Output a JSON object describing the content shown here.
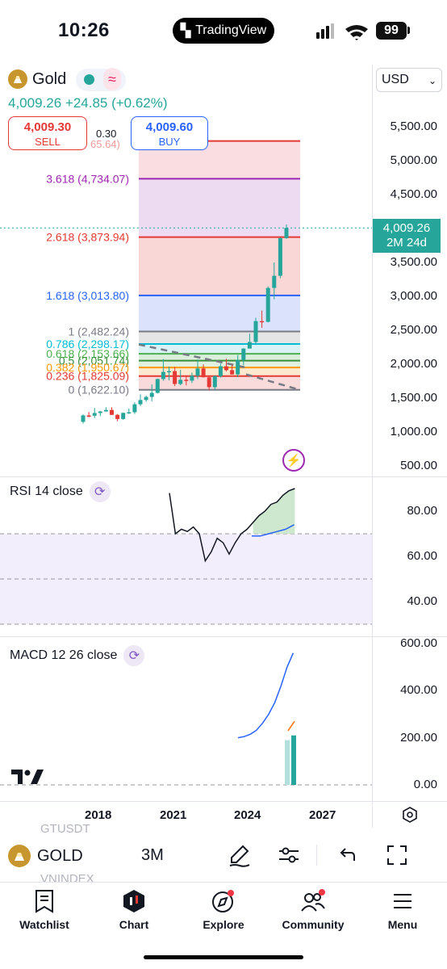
{
  "status_bar": {
    "time": "10:26",
    "island_label": "TradingView",
    "battery": "99"
  },
  "header": {
    "symbol": "Gold",
    "last_line": "4,009.26 +24.85 (+0.62%)",
    "sell": {
      "price": "4,009.30",
      "label": "SELL"
    },
    "buy": {
      "price": "4,009.60",
      "label": "BUY"
    },
    "spread": "0.30",
    "currency": "USD",
    "colors": {
      "up": "#26a69a",
      "down": "#e53935",
      "buy": "#2962ff"
    }
  },
  "price_axis": {
    "labels": [
      "5,500.00",
      "5,000.00",
      "4,500.00",
      "4,000.00",
      "3,500.00",
      "3,000.00",
      "2,500.00",
      "2,000.00",
      "1,500.00",
      "1,000.00",
      "500.00"
    ],
    "tag_price": "4,009.26",
    "tag_countdown": "2M 24d"
  },
  "fib_levels": [
    {
      "label": "3.618 (4,734.07)",
      "value": 4734.07,
      "color": "#9c27b0"
    },
    {
      "label": "2.618 (3,873.94)",
      "value": 3873.94,
      "color": "#e53935"
    },
    {
      "label": "1.618 (3,013.80)",
      "value": 3013.8,
      "color": "#2962ff"
    },
    {
      "label": "1 (2,482.24)",
      "value": 2482.24,
      "color": "#787b86"
    },
    {
      "label": "0.786 (2,298.17)",
      "value": 2298.17,
      "color": "#00bcd4"
    },
    {
      "label": "0.618 (2,153.66)",
      "value": 2153.66,
      "color": "#4caf50"
    },
    {
      "label": "0.5 (2,051.74)",
      "value": 2051.74,
      "color": "#388e3c"
    },
    {
      "label": "0.382 (1,950.67)",
      "value": 1950.67,
      "color": "#ff9800"
    },
    {
      "label": "0.236 (1,825.09)",
      "value": 1825.09,
      "color": "#e53935"
    },
    {
      "label": "0 (1,622.10)",
      "value": 1622.1,
      "color": "#787b86"
    }
  ],
  "fib_partial_label": "65.64)",
  "rsi": {
    "title": "RSI 14 close",
    "labels": [
      "80.00",
      "60.00",
      "40.00"
    ]
  },
  "macd": {
    "title": "MACD 12 26 close",
    "labels": [
      "600.00",
      "400.00",
      "200.00",
      "0.00"
    ]
  },
  "time_axis": [
    "2018",
    "2021",
    "2024",
    "2027"
  ],
  "toolbar": {
    "symbol": "GOLD",
    "interval": "3M",
    "ghost_above": "GTUSDT",
    "ghost_below": "VNINDEX"
  },
  "nav": [
    {
      "label": "Watchlist",
      "icon": "watchlist-icon"
    },
    {
      "label": "Chart",
      "icon": "chart-icon"
    },
    {
      "label": "Explore",
      "icon": "compass-icon"
    },
    {
      "label": "Community",
      "icon": "community-icon"
    },
    {
      "label": "Menu",
      "icon": "menu-icon"
    }
  ],
  "chart_data": {
    "type": "candlestick",
    "interval": "3M",
    "x_ticks": [
      "2018",
      "2021",
      "2024",
      "2027"
    ],
    "y_ticks": [
      500,
      1000,
      1500,
      2000,
      2500,
      3000,
      3500,
      4000,
      4500,
      5000,
      5500
    ],
    "ylim": [
      450,
      5750
    ],
    "last_price": 4009.26,
    "candles": [
      {
        "t": "2017-Q1",
        "o": 1150,
        "h": 1260,
        "l": 1125,
        "c": 1245
      },
      {
        "t": "2017-Q2",
        "o": 1245,
        "h": 1295,
        "l": 1215,
        "c": 1240
      },
      {
        "t": "2017-Q3",
        "o": 1240,
        "h": 1355,
        "l": 1205,
        "c": 1280
      },
      {
        "t": "2017-Q4",
        "o": 1280,
        "h": 1310,
        "l": 1235,
        "c": 1303
      },
      {
        "t": "2018-Q1",
        "o": 1303,
        "h": 1365,
        "l": 1300,
        "c": 1325
      },
      {
        "t": "2018-Q2",
        "o": 1325,
        "h": 1365,
        "l": 1250,
        "c": 1253
      },
      {
        "t": "2018-Q3",
        "o": 1253,
        "h": 1265,
        "l": 1160,
        "c": 1192
      },
      {
        "t": "2018-Q4",
        "o": 1192,
        "h": 1285,
        "l": 1180,
        "c": 1282
      },
      {
        "t": "2019-Q1",
        "o": 1282,
        "h": 1346,
        "l": 1266,
        "c": 1292
      },
      {
        "t": "2019-Q2",
        "o": 1292,
        "h": 1439,
        "l": 1266,
        "c": 1409
      },
      {
        "t": "2019-Q3",
        "o": 1409,
        "h": 1557,
        "l": 1383,
        "c": 1472
      },
      {
        "t": "2019-Q4",
        "o": 1472,
        "h": 1535,
        "l": 1445,
        "c": 1517
      },
      {
        "t": "2020-Q1",
        "o": 1517,
        "h": 1703,
        "l": 1451,
        "c": 1577
      },
      {
        "t": "2020-Q2",
        "o": 1577,
        "h": 1789,
        "l": 1568,
        "c": 1781
      },
      {
        "t": "2020-Q3",
        "o": 1781,
        "h": 2075,
        "l": 1757,
        "c": 1886
      },
      {
        "t": "2020-Q4",
        "o": 1886,
        "h": 1965,
        "l": 1764,
        "c": 1898
      },
      {
        "t": "2021-Q1",
        "o": 1898,
        "h": 1959,
        "l": 1677,
        "c": 1708
      },
      {
        "t": "2021-Q2",
        "o": 1708,
        "h": 1916,
        "l": 1690,
        "c": 1770
      },
      {
        "t": "2021-Q3",
        "o": 1770,
        "h": 1834,
        "l": 1688,
        "c": 1757
      },
      {
        "t": "2021-Q4",
        "o": 1757,
        "h": 1877,
        "l": 1722,
        "c": 1829
      },
      {
        "t": "2022-Q1",
        "o": 1829,
        "h": 2070,
        "l": 1780,
        "c": 1937
      },
      {
        "t": "2022-Q2",
        "o": 1937,
        "h": 1998,
        "l": 1805,
        "c": 1807
      },
      {
        "t": "2022-Q3",
        "o": 1807,
        "h": 1814,
        "l": 1615,
        "c": 1661
      },
      {
        "t": "2022-Q4",
        "o": 1661,
        "h": 1833,
        "l": 1617,
        "c": 1824
      },
      {
        "t": "2023-Q1",
        "o": 1824,
        "h": 2009,
        "l": 1804,
        "c": 1969
      },
      {
        "t": "2023-Q2",
        "o": 1969,
        "h": 2081,
        "l": 1893,
        "c": 1912
      },
      {
        "t": "2023-Q3",
        "o": 1912,
        "h": 1987,
        "l": 1846,
        "c": 1849
      },
      {
        "t": "2023-Q4",
        "o": 1849,
        "h": 2135,
        "l": 1810,
        "c": 2063
      },
      {
        "t": "2024-Q1",
        "o": 2063,
        "h": 2236,
        "l": 1984,
        "c": 2230
      },
      {
        "t": "2024-Q2",
        "o": 2230,
        "h": 2450,
        "l": 2277,
        "c": 2327
      },
      {
        "t": "2024-Q3",
        "o": 2327,
        "h": 2685,
        "l": 2293,
        "c": 2635
      },
      {
        "t": "2024-Q4",
        "o": 2635,
        "h": 2790,
        "l": 2536,
        "c": 2624
      },
      {
        "t": "2025-Q1",
        "o": 2624,
        "h": 3148,
        "l": 2615,
        "c": 3124
      },
      {
        "t": "2025-Q2",
        "o": 3124,
        "h": 3500,
        "l": 2957,
        "c": 3303
      },
      {
        "t": "2025-Q3",
        "o": 3303,
        "h": 3870,
        "l": 3268,
        "c": 3859
      },
      {
        "t": "2025-Q4",
        "o": 3859,
        "h": 4060,
        "l": 3850,
        "c": 4009
      }
    ],
    "rsi_ylim": [
      30,
      95
    ],
    "rsi": [
      88,
      70,
      72,
      71,
      73,
      70,
      58,
      62,
      68,
      66,
      61,
      66,
      70,
      72,
      75,
      78,
      80,
      83,
      84,
      87,
      89,
      90
    ],
    "rsi_signal": [
      69,
      69,
      70,
      71,
      72,
      74
    ],
    "macd_ylim": [
      0,
      620
    ],
    "macd_line": [
      200,
      205,
      215,
      232,
      262,
      300,
      350,
      420,
      500,
      560
    ],
    "macd_signal": [
      230,
      250,
      270
    ],
    "macd_hist": [
      190,
      210
    ]
  }
}
